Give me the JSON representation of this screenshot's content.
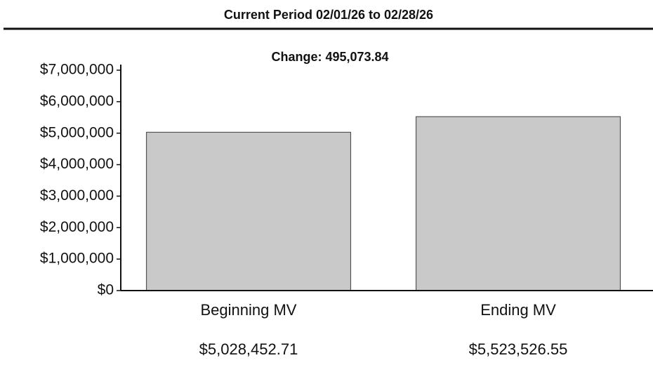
{
  "chart_data": {
    "type": "bar",
    "title": "Current Period 02/01/26 to 02/28/26",
    "subtitle": "Change: 495,073.84",
    "categories": [
      "Beginning MV",
      "Ending MV"
    ],
    "values": [
      5028452.71,
      5523526.55
    ],
    "value_labels": [
      "$5,028,452.71",
      "$5,523,526.55"
    ],
    "color": "#c9c9c9",
    "ylim": [
      0,
      7000000
    ],
    "yticks": [
      {
        "value": 0,
        "label": "$0"
      },
      {
        "value": 1000000,
        "label": "$1,000,000"
      },
      {
        "value": 2000000,
        "label": "$2,000,000"
      },
      {
        "value": 3000000,
        "label": "$3,000,000"
      },
      {
        "value": 4000000,
        "label": "$4,000,000"
      },
      {
        "value": 5000000,
        "label": "$5,000,000"
      },
      {
        "value": 6000000,
        "label": "$6,000,000"
      },
      {
        "value": 7000000,
        "label": "$7,000,000"
      }
    ],
    "grid": false
  }
}
